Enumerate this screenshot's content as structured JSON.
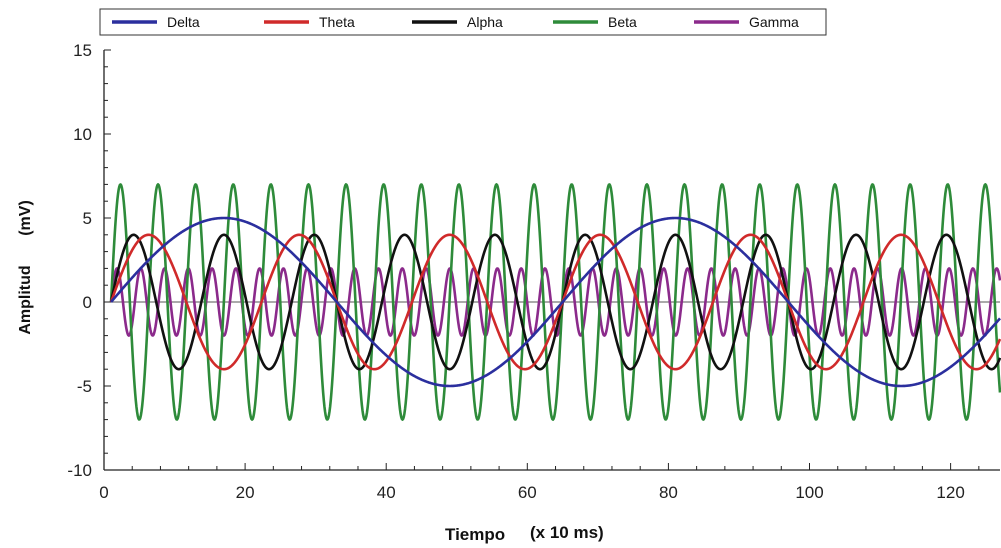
{
  "chart_data": {
    "type": "line",
    "title": "",
    "xlabel": "Tiempo",
    "xlabel_unit": "(x 10 ms)",
    "ylabel": "Amplitud",
    "ylabel_unit": "(mV)",
    "xlim": [
      0,
      127
    ],
    "ylim": [
      -10,
      15
    ],
    "xticks": [
      0,
      20,
      40,
      60,
      80,
      100,
      120
    ],
    "yticks": [
      -10,
      -5,
      0,
      5,
      10,
      15
    ],
    "xtick_labels": [
      "0",
      "20",
      "40",
      "60",
      "80",
      "100",
      "120"
    ],
    "ytick_labels": [
      "-10",
      "-5",
      "0",
      "5",
      "10",
      "15"
    ],
    "grid": false,
    "legend_position": "top",
    "series": [
      {
        "name": "Delta",
        "color": "#2b2f9e",
        "amplitude": 5,
        "period": 64,
        "start": 1
      },
      {
        "name": "Theta",
        "color": "#d02a2a",
        "amplitude": 4,
        "period": 21.33,
        "start": 1
      },
      {
        "name": "Alpha",
        "color": "#111111",
        "amplitude": 4,
        "period": 12.8,
        "start": 1
      },
      {
        "name": "Beta",
        "color": "#2e8b3a",
        "amplitude": 7,
        "period": 5.33,
        "start": 1
      },
      {
        "name": "Gamma",
        "color": "#8b2a8b",
        "amplitude": 2,
        "period": 3.37,
        "start": 1
      }
    ]
  }
}
